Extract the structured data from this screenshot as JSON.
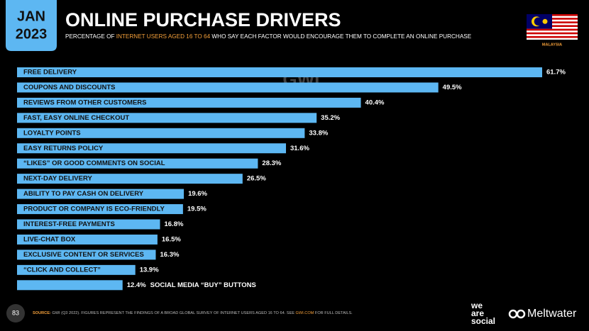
{
  "header": {
    "month": "JAN",
    "year": "2023",
    "country": "MALAYSIA",
    "watermark": "GWI."
  },
  "chart_data": {
    "type": "bar",
    "orientation": "horizontal",
    "title": "ONLINE PURCHASE DRIVERS",
    "subtitle": [
      "PERCENTAGE OF ",
      "INTERNET USERS AGED 16 TO 64",
      " WHO SAY EACH FACTOR WOULD ENCOURAGE THEM TO COMPLETE AN ONLINE PURCHASE"
    ],
    "categories": [
      "FREE DELIVERY",
      "COUPONS AND DISCOUNTS",
      "REVIEWS FROM OTHER CUSTOMERS",
      "FAST, EASY ONLINE CHECKOUT",
      "LOYALTY POINTS",
      "EASY RETURNS POLICY",
      "“LIKES” OR GOOD COMMENTS ON SOCIAL",
      "NEXT-DAY DELIVERY",
      "ABILITY TO PAY CASH ON DELIVERY",
      "PRODUCT OR COMPANY IS ECO-FRIENDLY",
      "INTEREST-FREE PAYMENTS",
      "LIVE-CHAT BOX",
      "EXCLUSIVE CONTENT OR SERVICES",
      "“CLICK AND COLLECT”",
      "SOCIAL MEDIA “BUY” BUTTONS"
    ],
    "values": [
      61.7,
      49.5,
      40.4,
      35.2,
      33.8,
      31.6,
      28.3,
      26.5,
      19.6,
      19.5,
      16.8,
      16.5,
      16.3,
      13.9,
      12.4
    ],
    "value_labels": [
      "61.7%",
      "49.5%",
      "40.4%",
      "35.2%",
      "33.8%",
      "31.6%",
      "28.3%",
      "26.5%",
      "19.6%",
      "19.5%",
      "16.8%",
      "16.5%",
      "16.3%",
      "13.9%",
      "12.4%"
    ],
    "color": "#5db7f2"
  },
  "footer": {
    "page": "83",
    "source": [
      "SOURCE: ",
      "GWI (Q3 2022). FIGURES REPRESENT THE FINDINGS OF A BROAD GLOBAL SURVEY OF INTERNET USERS AGED 16 TO 64. SEE ",
      "GWI.COM",
      " FOR FULL DETAILS."
    ],
    "logo1": [
      "we",
      "are",
      "social"
    ],
    "logo2": "Meltwater"
  }
}
